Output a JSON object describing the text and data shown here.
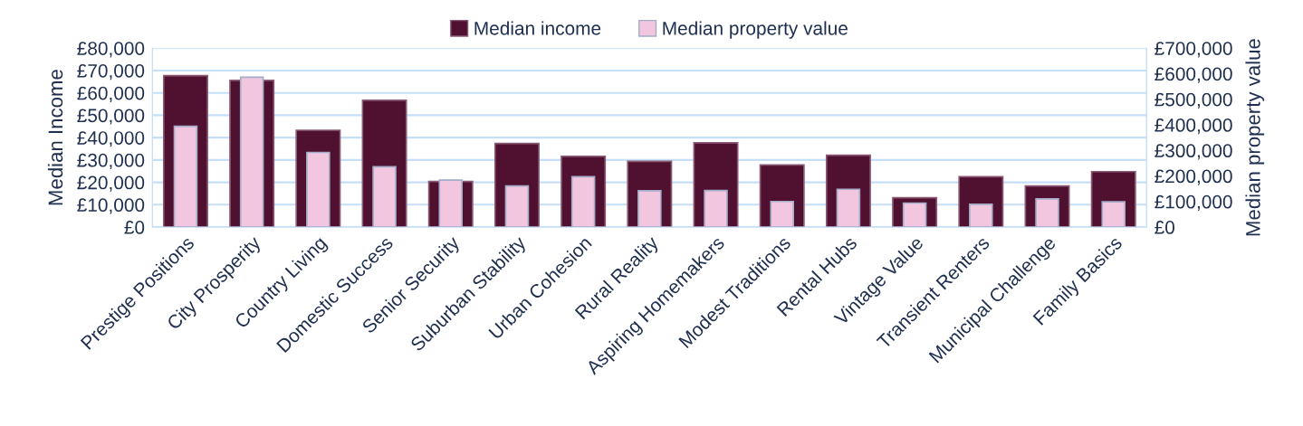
{
  "chart_data": {
    "type": "bar",
    "ylabel": "Median Income",
    "y2label": "Median property value",
    "legend": "top",
    "grid": "y",
    "categories": [
      "Prestige Positions",
      "City Prosperity",
      "Country Living",
      "Domestic Success",
      "Senior Security",
      "Suburban Stability",
      "Urban Cohesion",
      "Rural Reality",
      "Aspiring Homemakers",
      "Modest Traditions",
      "Rental Hubs",
      "Vintage Value",
      "Transient Renters",
      "Municipal Challenge",
      "Family Basics"
    ],
    "series": [
      {
        "name": "Median income",
        "color": "#501030",
        "values": [
          67700,
          65600,
          43300,
          56700,
          20400,
          37400,
          31600,
          29400,
          37700,
          27800,
          32100,
          13100,
          22500,
          18400,
          24800
        ]
      },
      {
        "name": "Median property value",
        "color": "#f3c6df",
        "axis": "y2",
        "values": [
          394000,
          586000,
          292000,
          236000,
          184000,
          161000,
          197000,
          142000,
          143000,
          100000,
          148000,
          94000,
          89000,
          110000,
          99000
        ]
      }
    ],
    "ylim": [
      0,
      80000
    ],
    "yticks": [
      {
        "value": 0,
        "label": "£0"
      },
      {
        "value": 10000,
        "label": "£10,000"
      },
      {
        "value": 20000,
        "label": "£20,000"
      },
      {
        "value": 30000,
        "label": "£30,000"
      },
      {
        "value": 40000,
        "label": "£40,000"
      },
      {
        "value": 50000,
        "label": "£50,000"
      },
      {
        "value": 60000,
        "label": "£60,000"
      },
      {
        "value": 70000,
        "label": "£70,000"
      },
      {
        "value": 80000,
        "label": "£80,000"
      }
    ],
    "y2lim": [
      0,
      700000
    ],
    "y2ticks": [
      {
        "value": 0,
        "label": "£0"
      },
      {
        "value": 100000,
        "label": "£100,000"
      },
      {
        "value": 200000,
        "label": "£200,000"
      },
      {
        "value": 300000,
        "label": "£300,000"
      },
      {
        "value": 400000,
        "label": "£400,000"
      },
      {
        "value": 500000,
        "label": "£500,000"
      },
      {
        "value": 600000,
        "label": "£600,000"
      },
      {
        "value": 700000,
        "label": "£700,000"
      }
    ]
  }
}
